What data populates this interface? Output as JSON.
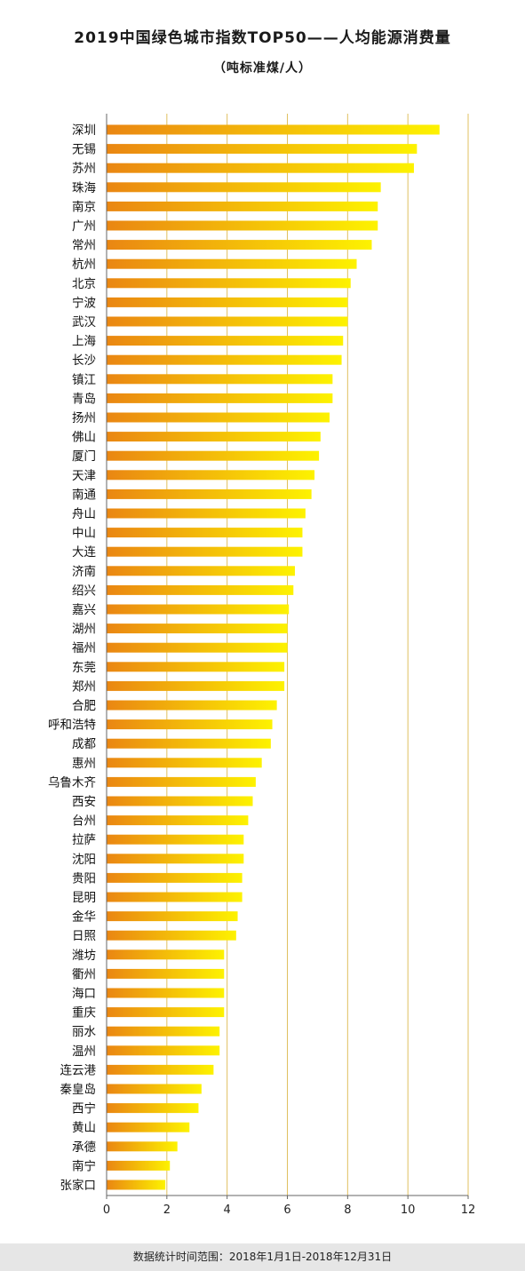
{
  "header": {
    "title": "2019中国绿色城市指数TOP50——人均能源消费量",
    "subtitle": "（吨标准煤/人）"
  },
  "footer": {
    "note": "数据统计时间范围：2018年1月1日-2018年12月31日"
  },
  "colors": {
    "bar_start": "#ea8612",
    "bar_end": "#fdf200",
    "axis_line": "#666666",
    "grid_line": "#e0c060",
    "footer_bg": "#e6e6e6"
  },
  "chart_data": {
    "type": "bar",
    "orientation": "horizontal",
    "title": "2019中国绿色城市指数TOP50——人均能源消费量",
    "subtitle": "（吨标准煤/人）",
    "xlim": [
      0,
      12
    ],
    "xticks": [
      0,
      2,
      4,
      6,
      8,
      10,
      12
    ],
    "grid": true,
    "categories": [
      "深圳",
      "无锡",
      "苏州",
      "珠海",
      "南京",
      "广州",
      "常州",
      "杭州",
      "北京",
      "宁波",
      "武汉",
      "上海",
      "长沙",
      "镇江",
      "青岛",
      "扬州",
      "佛山",
      "厦门",
      "天津",
      "南通",
      "舟山",
      "中山",
      "大连",
      "济南",
      "绍兴",
      "嘉兴",
      "湖州",
      "福州",
      "东莞",
      "郑州",
      "合肥",
      "呼和浩特",
      "成都",
      "惠州",
      "乌鲁木齐",
      "西安",
      "台州",
      "拉萨",
      "沈阳",
      "贵阳",
      "昆明",
      "金华",
      "日照",
      "潍坊",
      "衢州",
      "海口",
      "重庆",
      "丽水",
      "温州",
      "连云港",
      "秦皇岛",
      "西宁",
      "黄山",
      "承德",
      "南宁",
      "张家口"
    ],
    "values": [
      11.05,
      10.3,
      10.2,
      9.1,
      9.0,
      9.0,
      8.8,
      8.3,
      8.1,
      8.0,
      8.0,
      7.85,
      7.8,
      7.5,
      7.5,
      7.4,
      7.1,
      7.05,
      6.9,
      6.8,
      6.6,
      6.5,
      6.5,
      6.25,
      6.2,
      6.05,
      6.0,
      6.0,
      5.9,
      5.9,
      5.65,
      5.5,
      5.45,
      5.15,
      4.95,
      4.85,
      4.7,
      4.55,
      4.55,
      4.5,
      4.5,
      4.35,
      4.3,
      3.9,
      3.9,
      3.9,
      3.9,
      3.75,
      3.75,
      3.55,
      3.15,
      3.05,
      2.75,
      2.35,
      2.1,
      1.95
    ]
  }
}
